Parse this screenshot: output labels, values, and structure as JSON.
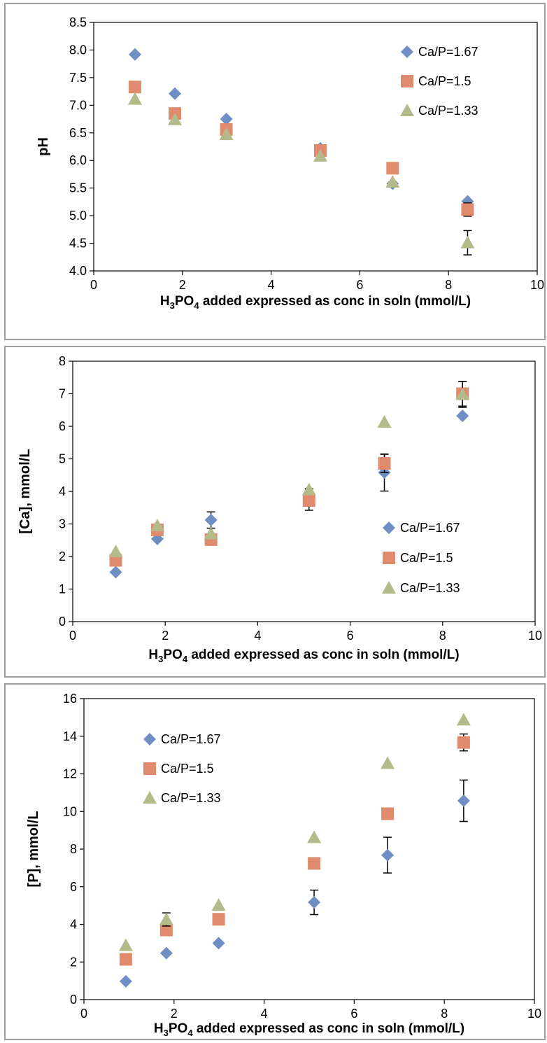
{
  "chart_data": [
    {
      "type": "scatter",
      "title": "",
      "xlabel": {
        "main": "H",
        "sub1": "3",
        "mid": "PO",
        "sub2": "4",
        "rest": " added expressed as conc in soln (mmol/L)"
      },
      "ylabel": "pH",
      "xlim": [
        0,
        10
      ],
      "ylim": [
        4.0,
        8.5
      ],
      "xticks": [
        "0",
        "2",
        "4",
        "6",
        "8",
        "10"
      ],
      "yticks": [
        "4.0",
        "4.5",
        "5.0",
        "5.5",
        "6.0",
        "6.5",
        "7.0",
        "7.5",
        "8.0",
        "8.5"
      ],
      "legend_position": "top-right",
      "series": [
        {
          "name": "Ca/P=1.67",
          "marker": "diamond",
          "color": "#6f8fc4",
          "x": [
            0.93,
            1.83,
            2.99,
            5.11,
            6.74,
            8.43
          ],
          "y": [
            7.92,
            7.21,
            6.75,
            6.22,
            5.58,
            5.26
          ],
          "err": [
            0,
            0,
            0,
            0,
            0,
            0
          ]
        },
        {
          "name": "Ca/P=1.5",
          "marker": "square",
          "color": "#e08a6e",
          "x": [
            0.93,
            1.83,
            2.99,
            5.11,
            6.74,
            8.43
          ],
          "y": [
            7.33,
            6.85,
            6.56,
            6.18,
            5.86,
            5.11
          ],
          "err": [
            0,
            0,
            0,
            0,
            0,
            0.12
          ]
        },
        {
          "name": "Ca/P=1.33",
          "marker": "triangle",
          "color": "#b4ba8a",
          "x": [
            0.93,
            1.83,
            2.99,
            5.11,
            6.74,
            8.43
          ],
          "y": [
            7.11,
            6.74,
            6.47,
            6.08,
            5.61,
            4.51
          ],
          "err": [
            0,
            0,
            0,
            0,
            0,
            0.22
          ]
        }
      ]
    },
    {
      "type": "scatter",
      "title": "",
      "xlabel": {
        "main": "H",
        "sub1": "3",
        "mid": "PO",
        "sub2": "4",
        "rest": " added expressed as conc in soln (mmol/L)"
      },
      "ylabel": "[Ca], mmol/L",
      "xlim": [
        0,
        10
      ],
      "ylim": [
        0,
        8
      ],
      "xticks": [
        "0",
        "2",
        "4",
        "6",
        "8",
        "10"
      ],
      "yticks": [
        "0",
        "1",
        "2",
        "3",
        "4",
        "5",
        "6",
        "7",
        "8"
      ],
      "legend_position": "right",
      "series": [
        {
          "name": "Ca/P=1.67",
          "marker": "diamond",
          "color": "#6f8fc4",
          "x": [
            0.93,
            1.83,
            2.99,
            5.11,
            6.74,
            8.43
          ],
          "y": [
            1.52,
            2.54,
            3.12,
            3.88,
            4.58,
            6.32
          ],
          "err": [
            0,
            0,
            0.25,
            0.2,
            0.57,
            0
          ]
        },
        {
          "name": "Ca/P=1.5",
          "marker": "square",
          "color": "#e08a6e",
          "x": [
            0.93,
            1.83,
            2.99,
            5.11,
            6.74,
            8.43
          ],
          "y": [
            1.88,
            2.82,
            2.52,
            3.72,
            4.86,
            7.0
          ],
          "err": [
            0,
            0,
            0,
            0.3,
            0.28,
            0.38
          ]
        },
        {
          "name": "Ca/P=1.33",
          "marker": "triangle",
          "color": "#b4ba8a",
          "x": [
            0.93,
            1.83,
            2.99,
            5.11,
            6.74,
            8.43
          ],
          "y": [
            2.15,
            2.95,
            2.7,
            4.05,
            6.13,
            6.98
          ],
          "err": [
            0,
            0,
            0,
            0,
            0,
            0.4
          ]
        }
      ]
    },
    {
      "type": "scatter",
      "title": "",
      "xlabel": {
        "main": "H",
        "sub1": "3",
        "mid": "PO",
        "sub2": "4",
        "rest": " added expressed as conc in soln (mmol/L)"
      },
      "ylabel": "[P], mmol/L",
      "xlim": [
        0,
        10
      ],
      "ylim": [
        0,
        16
      ],
      "xticks": [
        "0",
        "2",
        "4",
        "6",
        "8",
        "10"
      ],
      "yticks": [
        "0",
        "2",
        "4",
        "6",
        "8",
        "10",
        "12",
        "14",
        "16"
      ],
      "legend_position": "top-left",
      "series": [
        {
          "name": "Ca/P=1.67",
          "marker": "diamond",
          "color": "#6f8fc4",
          "x": [
            0.93,
            1.83,
            2.99,
            5.11,
            6.74,
            8.43
          ],
          "y": [
            0.97,
            2.47,
            3.0,
            5.17,
            7.68,
            10.57
          ],
          "err": [
            0,
            0,
            0,
            0.65,
            0.95,
            1.1
          ]
        },
        {
          "name": "Ca/P=1.5",
          "marker": "square",
          "color": "#e08a6e",
          "x": [
            0.93,
            1.83,
            2.99,
            5.11,
            6.74,
            8.43
          ],
          "y": [
            2.14,
            3.7,
            4.27,
            7.24,
            9.88,
            13.67
          ],
          "err": [
            0,
            0,
            0,
            0,
            0,
            0.45
          ]
        },
        {
          "name": "Ca/P=1.33",
          "marker": "triangle",
          "color": "#b4ba8a",
          "x": [
            0.93,
            1.83,
            2.99,
            5.11,
            6.74,
            8.43
          ],
          "y": [
            2.88,
            4.26,
            5.02,
            8.62,
            12.56,
            14.87
          ],
          "err": [
            0,
            0.35,
            0,
            0,
            0,
            0
          ]
        }
      ]
    }
  ]
}
